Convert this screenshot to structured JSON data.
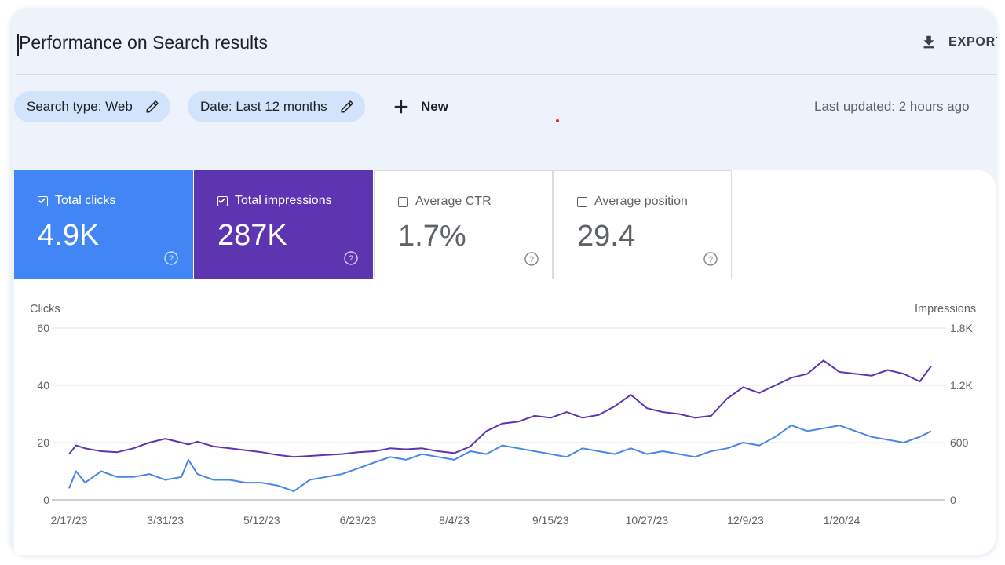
{
  "header": {
    "title": "Performance on Search results",
    "export_label": "EXPORT"
  },
  "filters": {
    "search_type": "Search type: Web",
    "date": "Date: Last 12 months",
    "new_label": "New",
    "last_updated": "Last updated: 2 hours ago"
  },
  "metrics": [
    {
      "label": "Total clicks",
      "value": "4.9K",
      "checked": true,
      "color": "#4285f4"
    },
    {
      "label": "Total impressions",
      "value": "287K",
      "checked": true,
      "color": "#5e35b1"
    },
    {
      "label": "Average CTR",
      "value": "1.7%",
      "checked": false
    },
    {
      "label": "Average position",
      "value": "29.4",
      "checked": false
    }
  ],
  "chart_data": {
    "type": "line",
    "x_start": "2/17/23",
    "x_end": "2/28/24",
    "xticks": [
      "2/17/23",
      "3/31/23",
      "5/12/23",
      "6/23/23",
      "8/4/23",
      "9/15/23",
      "10/27/23",
      "12/9/23",
      "1/20/24"
    ],
    "left_axis": {
      "title": "Clicks",
      "ticks": [
        "60",
        "40",
        "20",
        "0"
      ],
      "ylim": [
        0,
        60
      ]
    },
    "right_axis": {
      "title": "Impressions",
      "ticks": [
        "1.8K",
        "1.2K",
        "600",
        "0"
      ],
      "ylim": [
        0,
        1800
      ]
    },
    "grid": true,
    "series": [
      {
        "name": "Total clicks",
        "axis": "left",
        "color": "#4a86e8",
        "points": [
          [
            "2/17/23",
            4
          ],
          [
            "2/20/23",
            10
          ],
          [
            "2/24/23",
            6
          ],
          [
            "3/3/23",
            10
          ],
          [
            "3/10/23",
            8
          ],
          [
            "3/17/23",
            8
          ],
          [
            "3/24/23",
            9
          ],
          [
            "3/31/23",
            7
          ],
          [
            "4/7/23",
            8
          ],
          [
            "4/10/23",
            14
          ],
          [
            "4/14/23",
            9
          ],
          [
            "4/21/23",
            7
          ],
          [
            "4/28/23",
            7
          ],
          [
            "5/5/23",
            6
          ],
          [
            "5/12/23",
            6
          ],
          [
            "5/19/23",
            5
          ],
          [
            "5/26/23",
            3
          ],
          [
            "6/2/23",
            7
          ],
          [
            "6/9/23",
            8
          ],
          [
            "6/16/23",
            9
          ],
          [
            "6/23/23",
            11
          ],
          [
            "6/30/23",
            13
          ],
          [
            "7/7/23",
            15
          ],
          [
            "7/14/23",
            14
          ],
          [
            "7/21/23",
            16
          ],
          [
            "7/28/23",
            15
          ],
          [
            "8/4/23",
            14
          ],
          [
            "8/11/23",
            17
          ],
          [
            "8/18/23",
            16
          ],
          [
            "8/25/23",
            19
          ],
          [
            "9/1/23",
            18
          ],
          [
            "9/8/23",
            17
          ],
          [
            "9/15/23",
            16
          ],
          [
            "9/22/23",
            15
          ],
          [
            "9/29/23",
            18
          ],
          [
            "10/6/23",
            17
          ],
          [
            "10/13/23",
            16
          ],
          [
            "10/20/23",
            18
          ],
          [
            "10/27/23",
            16
          ],
          [
            "11/3/23",
            17
          ],
          [
            "11/10/23",
            16
          ],
          [
            "11/17/23",
            15
          ],
          [
            "11/24/23",
            17
          ],
          [
            "12/1/23",
            18
          ],
          [
            "12/8/23",
            20
          ],
          [
            "12/15/23",
            19
          ],
          [
            "12/22/23",
            22
          ],
          [
            "12/29/23",
            26
          ],
          [
            "1/5/24",
            24
          ],
          [
            "1/12/24",
            25
          ],
          [
            "1/19/24",
            26
          ],
          [
            "1/26/24",
            24
          ],
          [
            "2/2/24",
            22
          ],
          [
            "2/9/24",
            21
          ],
          [
            "2/16/24",
            20
          ],
          [
            "2/23/24",
            22
          ],
          [
            "2/28/24",
            24
          ]
        ]
      },
      {
        "name": "Total impressions",
        "axis": "right",
        "color": "#5e35b1",
        "points": [
          [
            "2/17/23",
            480
          ],
          [
            "2/20/23",
            570
          ],
          [
            "2/24/23",
            540
          ],
          [
            "3/3/23",
            510
          ],
          [
            "3/10/23",
            500
          ],
          [
            "3/17/23",
            540
          ],
          [
            "3/24/23",
            600
          ],
          [
            "3/31/23",
            640
          ],
          [
            "4/7/23",
            600
          ],
          [
            "4/10/23",
            580
          ],
          [
            "4/14/23",
            610
          ],
          [
            "4/21/23",
            560
          ],
          [
            "4/28/23",
            540
          ],
          [
            "5/5/23",
            520
          ],
          [
            "5/12/23",
            500
          ],
          [
            "5/19/23",
            470
          ],
          [
            "5/26/23",
            450
          ],
          [
            "6/2/23",
            460
          ],
          [
            "6/9/23",
            470
          ],
          [
            "6/16/23",
            480
          ],
          [
            "6/23/23",
            500
          ],
          [
            "6/30/23",
            510
          ],
          [
            "7/7/23",
            540
          ],
          [
            "7/14/23",
            530
          ],
          [
            "7/21/23",
            540
          ],
          [
            "7/28/23",
            510
          ],
          [
            "8/4/23",
            490
          ],
          [
            "8/11/23",
            560
          ],
          [
            "8/18/23",
            720
          ],
          [
            "8/25/23",
            800
          ],
          [
            "9/1/23",
            820
          ],
          [
            "9/8/23",
            880
          ],
          [
            "9/15/23",
            860
          ],
          [
            "9/22/23",
            920
          ],
          [
            "9/29/23",
            860
          ],
          [
            "10/6/23",
            890
          ],
          [
            "10/13/23",
            980
          ],
          [
            "10/20/23",
            1100
          ],
          [
            "10/27/23",
            960
          ],
          [
            "11/3/23",
            920
          ],
          [
            "11/10/23",
            900
          ],
          [
            "11/17/23",
            860
          ],
          [
            "11/24/23",
            880
          ],
          [
            "12/1/23",
            1060
          ],
          [
            "12/8/23",
            1180
          ],
          [
            "12/15/23",
            1120
          ],
          [
            "12/22/23",
            1200
          ],
          [
            "12/29/23",
            1280
          ],
          [
            "1/5/24",
            1320
          ],
          [
            "1/12/24",
            1460
          ],
          [
            "1/19/24",
            1340
          ],
          [
            "1/26/24",
            1320
          ],
          [
            "2/2/24",
            1300
          ],
          [
            "2/9/24",
            1360
          ],
          [
            "2/16/24",
            1320
          ],
          [
            "2/23/24",
            1240
          ],
          [
            "2/28/24",
            1400
          ]
        ]
      }
    ]
  }
}
